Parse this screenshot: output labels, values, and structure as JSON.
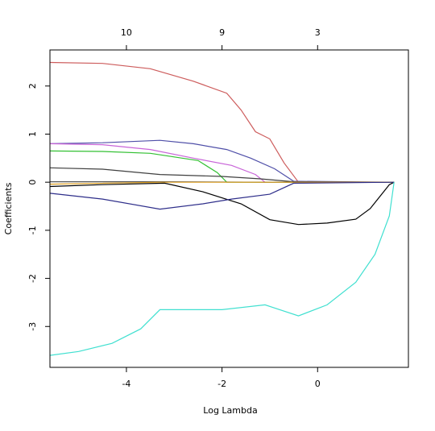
{
  "chart_data": {
    "type": "line",
    "xlabel": "Log Lambda",
    "ylabel": "Coefficients",
    "xlim": [
      -5.6,
      1.9
    ],
    "ylim": [
      -3.85,
      2.75
    ],
    "x_ticks": [
      -4,
      -2,
      0
    ],
    "y_ticks": [
      -3,
      -2,
      -1,
      0,
      1,
      2
    ],
    "top_axis": {
      "ticks": [
        {
          "x": -4.0,
          "label": "10"
        },
        {
          "x": -2.0,
          "label": "9"
        },
        {
          "x": 0.0,
          "label": "3"
        }
      ]
    },
    "grid": false,
    "series": [
      {
        "color": "#cd5c5c",
        "points": [
          [
            -5.6,
            2.49
          ],
          [
            -4.5,
            2.47
          ],
          [
            -3.5,
            2.36
          ],
          [
            -2.6,
            2.1
          ],
          [
            -1.9,
            1.85
          ],
          [
            -1.6,
            1.5
          ],
          [
            -1.3,
            1.05
          ],
          [
            -1.0,
            0.9
          ],
          [
            -0.7,
            0.4
          ],
          [
            -0.4,
            0.0
          ],
          [
            1.6,
            0.0
          ]
        ]
      },
      {
        "color": "#4f4fa8",
        "points": [
          [
            -5.6,
            0.8
          ],
          [
            -4.5,
            0.82
          ],
          [
            -3.3,
            0.87
          ],
          [
            -2.6,
            0.8
          ],
          [
            -1.9,
            0.68
          ],
          [
            -1.4,
            0.5
          ],
          [
            -0.9,
            0.28
          ],
          [
            -0.5,
            0.02
          ],
          [
            1.6,
            0.0
          ]
        ]
      },
      {
        "color": "#c864d8",
        "points": [
          [
            -5.6,
            0.8
          ],
          [
            -4.5,
            0.78
          ],
          [
            -3.5,
            0.68
          ],
          [
            -2.6,
            0.5
          ],
          [
            -1.8,
            0.35
          ],
          [
            -1.3,
            0.16
          ],
          [
            -1.1,
            0.0
          ],
          [
            1.6,
            0.0
          ]
        ]
      },
      {
        "color": "#32c032",
        "points": [
          [
            -5.6,
            0.65
          ],
          [
            -4.5,
            0.64
          ],
          [
            -3.5,
            0.6
          ],
          [
            -2.5,
            0.45
          ],
          [
            -2.1,
            0.2
          ],
          [
            -1.9,
            0.0
          ],
          [
            1.6,
            0.0
          ]
        ]
      },
      {
        "color": "#404040",
        "points": [
          [
            -5.6,
            0.3
          ],
          [
            -4.5,
            0.27
          ],
          [
            -3.3,
            0.16
          ],
          [
            -2.0,
            0.12
          ],
          [
            -1.2,
            0.07
          ],
          [
            -0.5,
            0.01
          ],
          [
            1.6,
            0.0
          ]
        ]
      },
      {
        "color": "#555555",
        "points": [
          [
            -5.6,
            0.01
          ],
          [
            -3.3,
            0.01
          ],
          [
            -1.1,
            0.0
          ],
          [
            1.6,
            0.0
          ]
        ]
      },
      {
        "color": "#e0a020",
        "points": [
          [
            -5.6,
            -0.04
          ],
          [
            -3.3,
            0.0
          ],
          [
            1.6,
            0.0
          ]
        ]
      },
      {
        "color": "#000000",
        "points": [
          [
            -5.6,
            -0.09
          ],
          [
            -4.5,
            -0.05
          ],
          [
            -3.2,
            -0.02
          ],
          [
            -2.4,
            -0.2
          ],
          [
            -1.6,
            -0.45
          ],
          [
            -1.0,
            -0.78
          ],
          [
            -0.4,
            -0.88
          ],
          [
            0.2,
            -0.85
          ],
          [
            0.8,
            -0.77
          ],
          [
            1.1,
            -0.55
          ],
          [
            1.5,
            -0.05
          ],
          [
            1.6,
            0.0
          ]
        ]
      },
      {
        "color": "#2e2e8a",
        "points": [
          [
            -5.6,
            -0.23
          ],
          [
            -4.5,
            -0.35
          ],
          [
            -3.3,
            -0.56
          ],
          [
            -2.4,
            -0.45
          ],
          [
            -1.8,
            -0.35
          ],
          [
            -1.0,
            -0.25
          ],
          [
            -0.5,
            -0.02
          ],
          [
            1.6,
            0.0
          ]
        ]
      },
      {
        "color": "#40e0d0",
        "points": [
          [
            -5.6,
            -3.6
          ],
          [
            -5.0,
            -3.52
          ],
          [
            -4.3,
            -3.35
          ],
          [
            -3.7,
            -3.05
          ],
          [
            -3.3,
            -2.65
          ],
          [
            -2.0,
            -2.65
          ],
          [
            -1.1,
            -2.55
          ],
          [
            -0.4,
            -2.78
          ],
          [
            0.2,
            -2.55
          ],
          [
            0.8,
            -2.08
          ],
          [
            1.2,
            -1.5
          ],
          [
            1.5,
            -0.7
          ],
          [
            1.6,
            0.0
          ]
        ]
      }
    ]
  }
}
